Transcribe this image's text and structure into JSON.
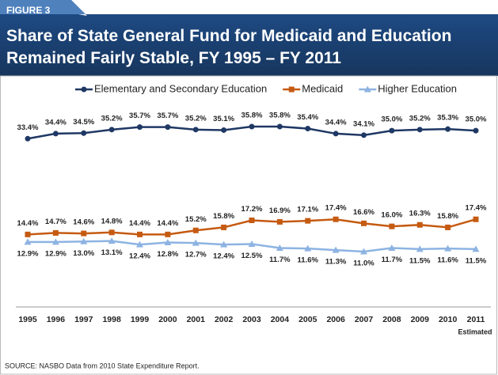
{
  "figure_label": "FIGURE 3",
  "source": "SOURCE: NASBO Data from 2010 State Expenditure Report.",
  "chart_data": {
    "type": "line",
    "title": "Share of State General Fund for Medicaid and Education Remained Fairly Stable, FY 1995 – FY 2011",
    "categories": [
      "1995",
      "1996",
      "1997",
      "1998",
      "1999",
      "2000",
      "2001",
      "2002",
      "2003",
      "2004",
      "2005",
      "2006",
      "2007",
      "2008",
      "2009",
      "2010",
      "2011"
    ],
    "x_annotation": "Estimated",
    "series": [
      {
        "name": "Elementary and Secondary Education",
        "color": "#1f3864",
        "marker": "circle",
        "values": [
          33.4,
          34.4,
          34.5,
          35.2,
          35.7,
          35.7,
          35.2,
          35.1,
          35.8,
          35.8,
          35.4,
          34.4,
          34.1,
          35.0,
          35.2,
          35.3,
          35.0
        ],
        "value_labels": [
          "33.4%",
          "34.4%",
          "34.5%",
          "35.2%",
          "35.7%",
          "35.7%",
          "35.2%",
          "35.1%",
          "35.8%",
          "35.8%",
          "35.4%",
          "34.4%",
          "34.1%",
          "35.0%",
          "35.2%",
          "35.3%",
          "35.0%"
        ]
      },
      {
        "name": "Medicaid",
        "color": "#c55a11",
        "marker": "square",
        "values": [
          14.4,
          14.7,
          14.6,
          14.8,
          14.4,
          14.4,
          15.2,
          15.8,
          17.2,
          16.9,
          17.1,
          17.4,
          16.6,
          16.0,
          16.3,
          15.8,
          17.4
        ],
        "value_labels": [
          "14.4%",
          "14.7%",
          "14.6%",
          "14.8%",
          "14.4%",
          "14.4%",
          "15.2%",
          "15.8%",
          "17.2%",
          "16.9%",
          "17.1%",
          "17.4%",
          "16.6%",
          "16.0%",
          "16.3%",
          "15.8%",
          "17.4%"
        ]
      },
      {
        "name": "Higher Education",
        "color": "#8db3e2",
        "marker": "triangle",
        "values": [
          12.9,
          12.9,
          13.0,
          13.1,
          12.4,
          12.8,
          12.7,
          12.4,
          12.5,
          11.7,
          11.6,
          11.3,
          11.0,
          11.7,
          11.5,
          11.6,
          11.5
        ],
        "value_labels": [
          "12.9%",
          "12.9%",
          "13.0%",
          "13.1%",
          "12.4%",
          "12.8%",
          "12.7%",
          "12.4%",
          "12.5%",
          "11.7%",
          "11.6%",
          "11.3%",
          "11.0%",
          "11.7%",
          "11.5%",
          "11.6%",
          "11.5%"
        ]
      }
    ]
  }
}
